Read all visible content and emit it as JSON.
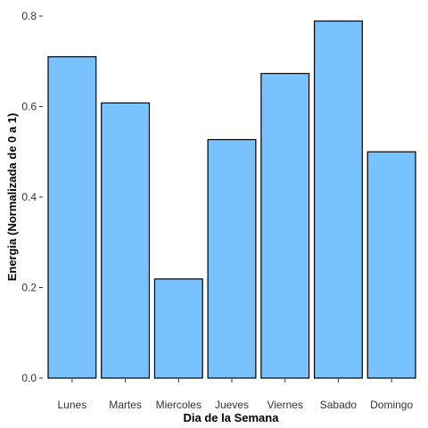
{
  "chart_data": {
    "type": "bar",
    "categories": [
      "Lunes",
      "Martes",
      "Miercoles",
      "Jueves",
      "Viernes",
      "Sabado",
      "Domingo"
    ],
    "values": [
      0.71,
      0.608,
      0.219,
      0.527,
      0.673,
      0.789,
      0.5
    ],
    "xlabel": "Dia de la Semana",
    "ylabel": "Energia (Normalizada de 0 a 1)",
    "ylim": [
      0,
      0.8
    ],
    "yticks": [
      0.0,
      0.2,
      0.4,
      0.6,
      0.8
    ],
    "ytick_labels": [
      "0.0",
      "0.2",
      "0.4",
      "0.6",
      "0.8"
    ],
    "grid": false,
    "bar_color": "#77C2FF",
    "bar_edge_color": "#000000"
  }
}
